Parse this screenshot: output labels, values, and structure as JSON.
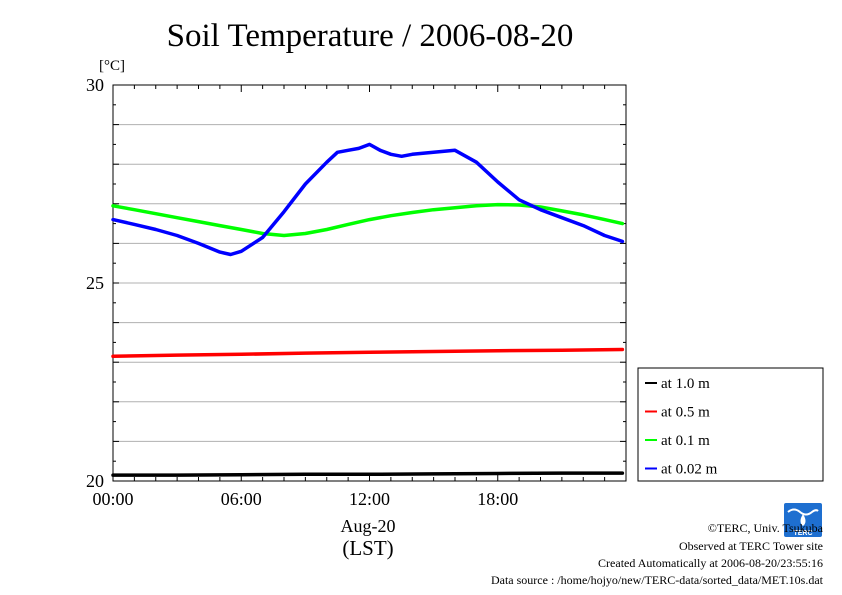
{
  "chart_data": {
    "type": "line",
    "title": "Soil Temperature / 2006-08-20",
    "ylabel": "[°C]",
    "xlabel": "(LST)",
    "date_label": "Aug-20",
    "x_unit": "hours",
    "xlim": [
      0,
      24
    ],
    "ylim": [
      20,
      30
    ],
    "x_ticks": [
      {
        "value": 0,
        "label": "00:00"
      },
      {
        "value": 6,
        "label": "06:00"
      },
      {
        "value": 12,
        "label": "12:00"
      },
      {
        "value": 18,
        "label": "18:00"
      }
    ],
    "y_ticks": [
      {
        "value": 20,
        "label": "20"
      },
      {
        "value": 25,
        "label": "25"
      },
      {
        "value": 30,
        "label": "30"
      }
    ],
    "grid": true,
    "legend_position": "bottom-right",
    "series": [
      {
        "name": "at 1.0 m",
        "color": "#000000",
        "x": [
          0,
          3,
          6,
          9,
          12,
          15,
          18,
          21,
          23.83
        ],
        "y": [
          20.15,
          20.15,
          20.16,
          20.17,
          20.17,
          20.18,
          20.19,
          20.2,
          20.2
        ]
      },
      {
        "name": "at 0.5 m",
        "color": "#ff0000",
        "x": [
          0,
          3,
          6,
          9,
          12,
          15,
          18,
          21,
          23.83
        ],
        "y": [
          23.15,
          23.18,
          23.2,
          23.23,
          23.25,
          23.27,
          23.29,
          23.3,
          23.32
        ]
      },
      {
        "name": "at 0.1 m",
        "color": "#00ff00",
        "x": [
          0,
          1,
          2,
          3,
          4,
          5,
          6,
          7,
          8,
          9,
          10,
          11,
          12,
          13,
          14,
          15,
          16,
          17,
          18,
          19,
          20,
          21,
          22,
          23,
          23.83
        ],
        "y": [
          26.95,
          26.85,
          26.75,
          26.65,
          26.55,
          26.45,
          26.35,
          26.25,
          26.2,
          26.25,
          26.35,
          26.48,
          26.6,
          26.7,
          26.78,
          26.85,
          26.9,
          26.95,
          26.98,
          26.97,
          26.92,
          26.82,
          26.72,
          26.6,
          26.5
        ]
      },
      {
        "name": "at 0.02 m",
        "color": "#0000ff",
        "x": [
          0,
          1,
          2,
          3,
          4,
          5,
          5.5,
          6,
          7,
          8,
          9,
          10,
          10.5,
          11,
          11.5,
          12,
          12.5,
          13,
          13.5,
          14,
          15,
          16,
          17,
          18,
          19,
          20,
          21,
          22,
          23,
          23.83
        ],
        "y": [
          26.6,
          26.48,
          26.35,
          26.2,
          26.0,
          25.78,
          25.72,
          25.8,
          26.15,
          26.8,
          27.5,
          28.05,
          28.3,
          28.35,
          28.4,
          28.5,
          28.35,
          28.25,
          28.2,
          28.25,
          28.3,
          28.35,
          28.05,
          27.55,
          27.1,
          26.85,
          26.65,
          26.45,
          26.2,
          26.05
        ]
      }
    ]
  },
  "footer": {
    "copyright": "©TERC, Univ. Tsukuba",
    "observed": "Observed at TERC Tower site",
    "created": "Created Automatically at 2006-08-20/23:55:16",
    "source": "Data source : /home/hojyo/new/TERC-data/sorted_data/MET.10s.dat",
    "logo_text": "TERC"
  },
  "colors": {
    "grid": "#b0b0b0",
    "logo_blue": "#1e6fd0"
  }
}
